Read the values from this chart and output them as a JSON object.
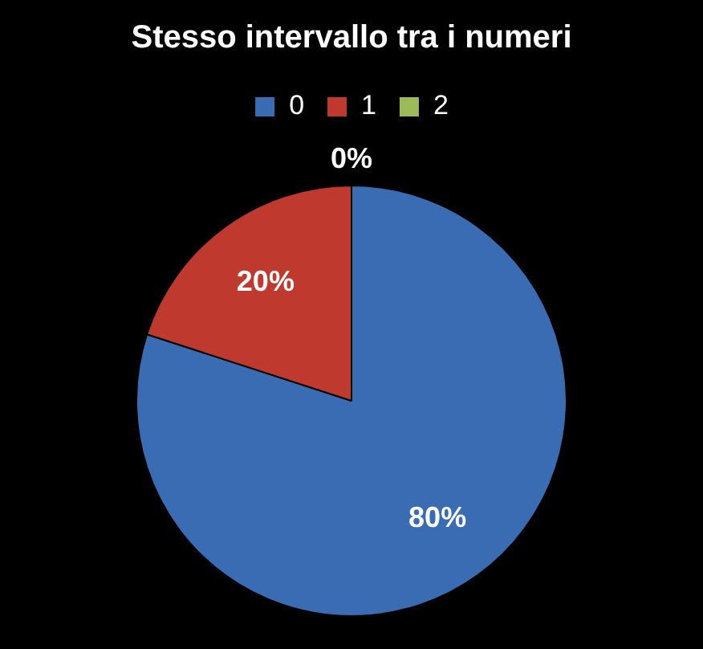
{
  "chart_data": {
    "type": "pie",
    "title": "Stesso intervallo tra i numeri",
    "categories": [
      "0",
      "1",
      "2"
    ],
    "values": [
      80,
      20,
      0
    ],
    "colors": [
      "#3a6cb4",
      "#c0392f",
      "#9bbb59"
    ],
    "value_labels": [
      "80%",
      "20%",
      "0%"
    ],
    "legend": "top"
  }
}
